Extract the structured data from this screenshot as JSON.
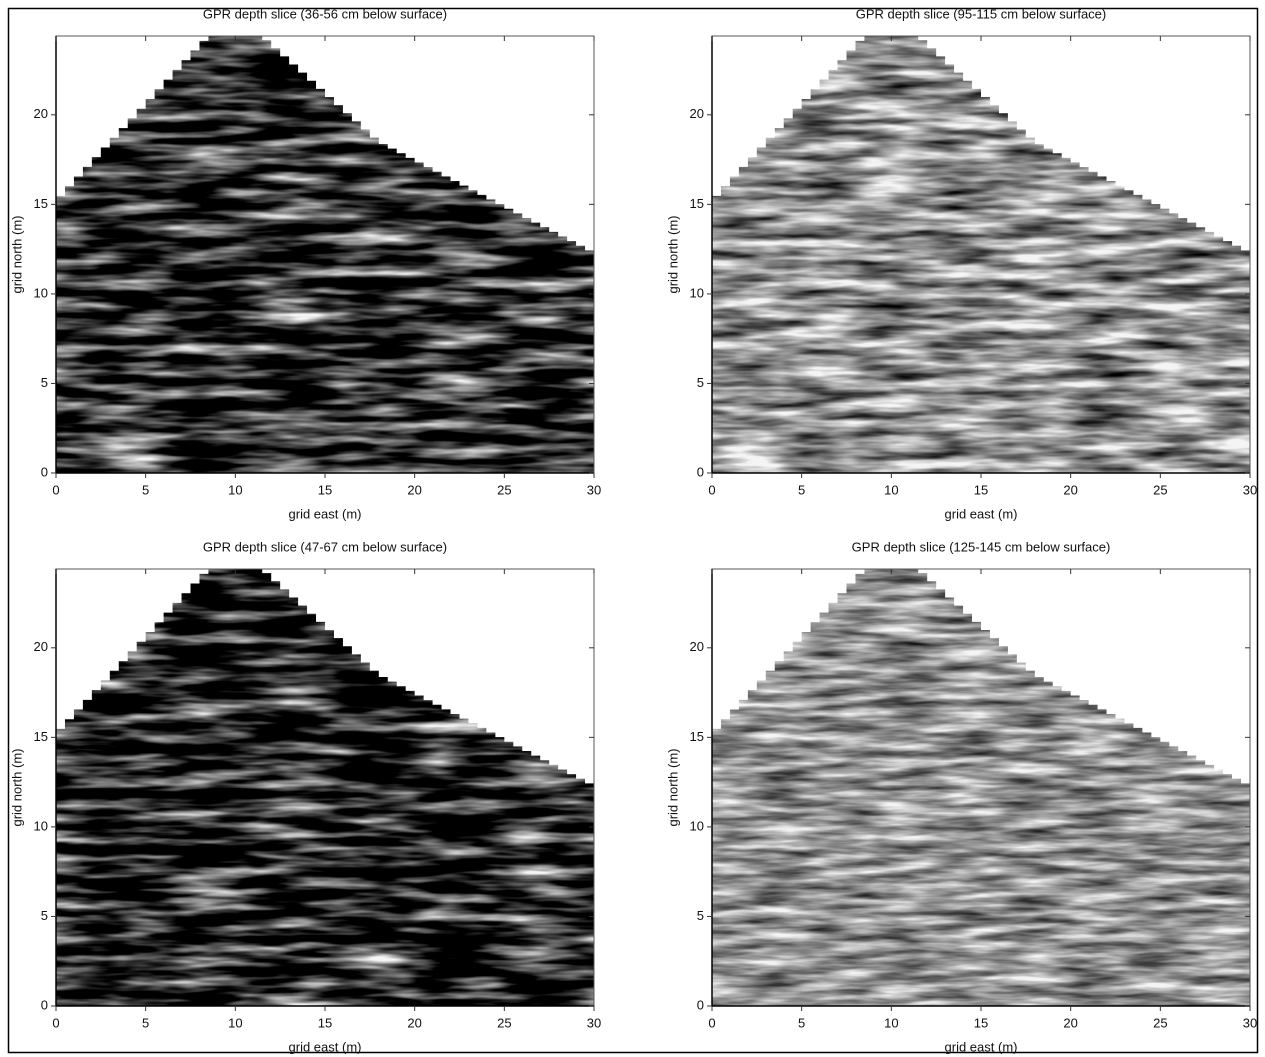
{
  "chart_data": [
    {
      "type": "image",
      "title": "GPR depth slice (36-56 cm below surface)",
      "xlabel": "grid east (m)",
      "ylabel": "grid north (m)",
      "xlim": [
        0,
        30
      ],
      "ylim": [
        0,
        24.4
      ],
      "xticks": [
        0,
        5,
        10,
        15,
        20,
        25,
        30
      ],
      "yticks": [
        0,
        5,
        10,
        15,
        20
      ]
    },
    {
      "type": "image",
      "title": "GPR depth slice (95-115 cm below surface)",
      "xlabel": "grid east (m)",
      "ylabel": "grid north (m)",
      "xlim": [
        0,
        30
      ],
      "ylim": [
        0,
        24.4
      ],
      "xticks": [
        0,
        5,
        10,
        15,
        20,
        25,
        30
      ],
      "yticks": [
        0,
        5,
        10,
        15,
        20
      ]
    },
    {
      "type": "image",
      "title": "GPR depth slice (47-67 cm below surface)",
      "xlabel": "grid east (m)",
      "ylabel": "grid north (m)",
      "xlim": [
        0,
        30
      ],
      "ylim": [
        0,
        24.4
      ],
      "xticks": [
        0,
        5,
        10,
        15,
        20,
        25,
        30
      ],
      "yticks": [
        0,
        5,
        10,
        15,
        20
      ]
    },
    {
      "type": "image",
      "title": "GPR depth slice (125-145 cm below surface)",
      "xlabel": "grid east (m)",
      "ylabel": "grid north (m)",
      "xlim": [
        0,
        30
      ],
      "ylim": [
        0,
        24.4
      ],
      "xticks": [
        0,
        5,
        10,
        15,
        20,
        25,
        30
      ],
      "yticks": [
        0,
        5,
        10,
        15,
        20
      ]
    }
  ]
}
